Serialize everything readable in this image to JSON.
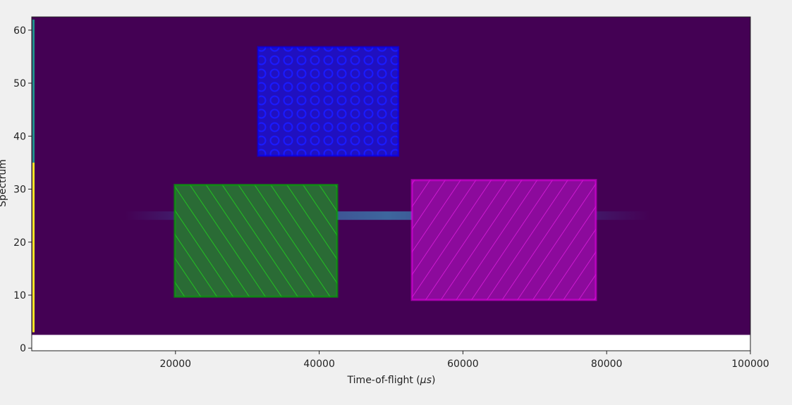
{
  "chart_data": {
    "type": "heatmap",
    "xlabel_prefix": "Time-of-flight (",
    "xlabel_unit": "μs",
    "xlabel_suffix": ")",
    "ylabel": "Spectrum",
    "xlim": [
      0,
      100000
    ],
    "ylim": [
      -0.5,
      62.5
    ],
    "image_extent_y": [
      2.5,
      62.5
    ],
    "xticks": [
      20000,
      40000,
      60000,
      80000,
      100000
    ],
    "yticks": [
      0,
      10,
      20,
      30,
      40,
      50,
      60
    ],
    "colormap": "viridis",
    "background_color": "#440154",
    "features": [
      {
        "description": "bright",
        "x_range": [
          0,
          500
        ],
        "y_range": [
          3,
          62
        ],
        "color": "#fde725"
      },
      {
        "description": "band",
        "x_range": [
          13000,
          86000
        ],
        "y_center": 25,
        "color": "#3b6bb0"
      }
    ],
    "regions": [
      {
        "x": [
          31500,
          51000
        ],
        "y": [
          36.3,
          56.8
        ],
        "color": "#0000ff",
        "hatch": "circles"
      },
      {
        "x": [
          19900,
          42500
        ],
        "y": [
          9.7,
          30.8
        ],
        "color": "#00aa00",
        "hatch": "backslash"
      },
      {
        "x": [
          52900,
          78500
        ],
        "y": [
          9.1,
          31.7
        ],
        "color": "#dd00dd",
        "hatch": "slash"
      }
    ]
  }
}
